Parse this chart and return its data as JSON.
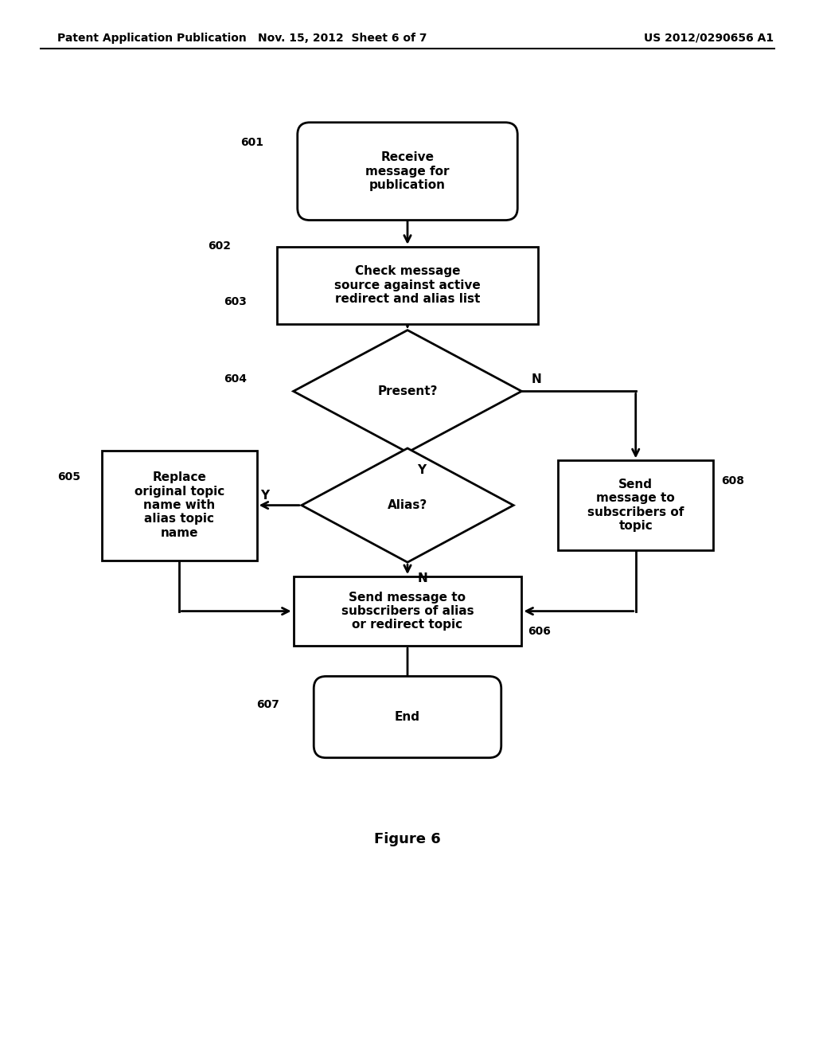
{
  "bg_color": "#ffffff",
  "header_left": "Patent Application Publication",
  "header_mid": "Nov. 15, 2012  Sheet 6 of 7",
  "header_right": "US 2012/0290656 A1",
  "figure_label": "Figure 6",
  "label_fontsize": 11,
  "ref_fontsize": 10,
  "header_fontsize": 10,
  "figure_fontsize": 13
}
